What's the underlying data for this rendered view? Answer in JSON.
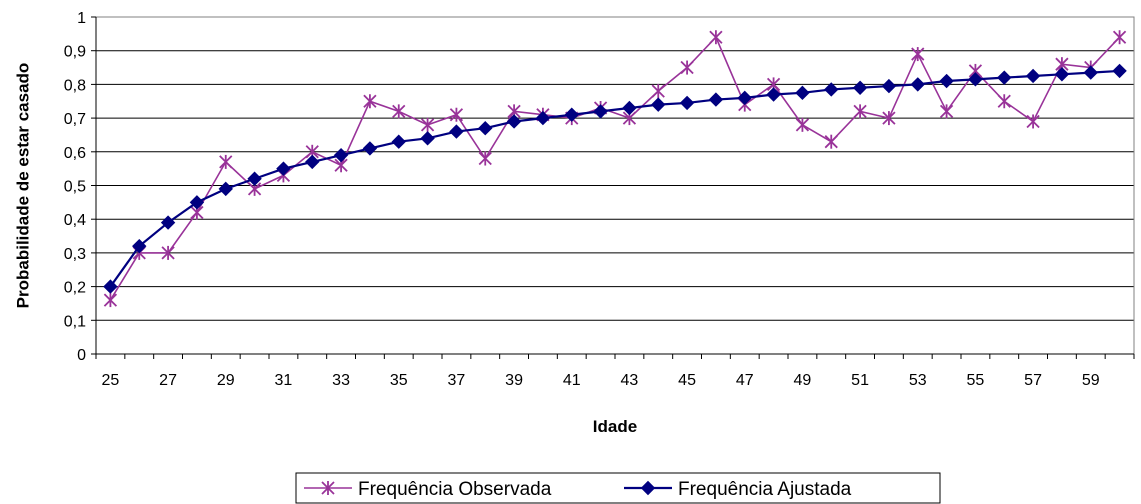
{
  "chart_data": {
    "type": "line",
    "xlabel": "Idade",
    "ylabel": "Probabilidade de estar casado",
    "x": [
      25,
      26,
      27,
      28,
      29,
      30,
      31,
      32,
      33,
      34,
      35,
      36,
      37,
      38,
      39,
      40,
      41,
      42,
      43,
      44,
      45,
      46,
      47,
      48,
      49,
      50,
      51,
      52,
      53,
      54,
      55,
      56,
      57,
      58,
      59,
      60
    ],
    "x_tick_labels": [
      "25",
      "27",
      "29",
      "31",
      "33",
      "35",
      "37",
      "39",
      "41",
      "43",
      "45",
      "47",
      "49",
      "51",
      "53",
      "55",
      "57",
      "59"
    ],
    "y_tick_labels": [
      "0",
      "0,1",
      "0,2",
      "0,3",
      "0,4",
      "0,5",
      "0,6",
      "0,7",
      "0,8",
      "0,9",
      "1"
    ],
    "ylim": [
      0,
      1
    ],
    "grid": "horizontal",
    "legend_position": "bottom",
    "series": [
      {
        "name": "Frequência Observada",
        "color": "#993399",
        "marker": "asterisk",
        "values": [
          0.16,
          0.3,
          0.3,
          0.42,
          0.57,
          0.49,
          0.53,
          0.6,
          0.56,
          0.75,
          0.72,
          0.68,
          0.71,
          0.58,
          0.72,
          0.71,
          0.7,
          0.73,
          0.7,
          0.78,
          0.85,
          0.94,
          0.74,
          0.8,
          0.68,
          0.63,
          0.72,
          0.7,
          0.89,
          0.72,
          0.84,
          0.75,
          0.69,
          0.86,
          0.85,
          0.94
        ]
      },
      {
        "name": "Frequência Ajustada",
        "color": "#000080",
        "marker": "diamond",
        "values": [
          0.2,
          0.32,
          0.39,
          0.45,
          0.49,
          0.52,
          0.55,
          0.57,
          0.59,
          0.61,
          0.63,
          0.64,
          0.66,
          0.67,
          0.69,
          0.7,
          0.71,
          0.72,
          0.73,
          0.74,
          0.745,
          0.755,
          0.76,
          0.77,
          0.775,
          0.785,
          0.79,
          0.795,
          0.8,
          0.81,
          0.815,
          0.82,
          0.825,
          0.83,
          0.835,
          0.84
        ]
      }
    ]
  }
}
